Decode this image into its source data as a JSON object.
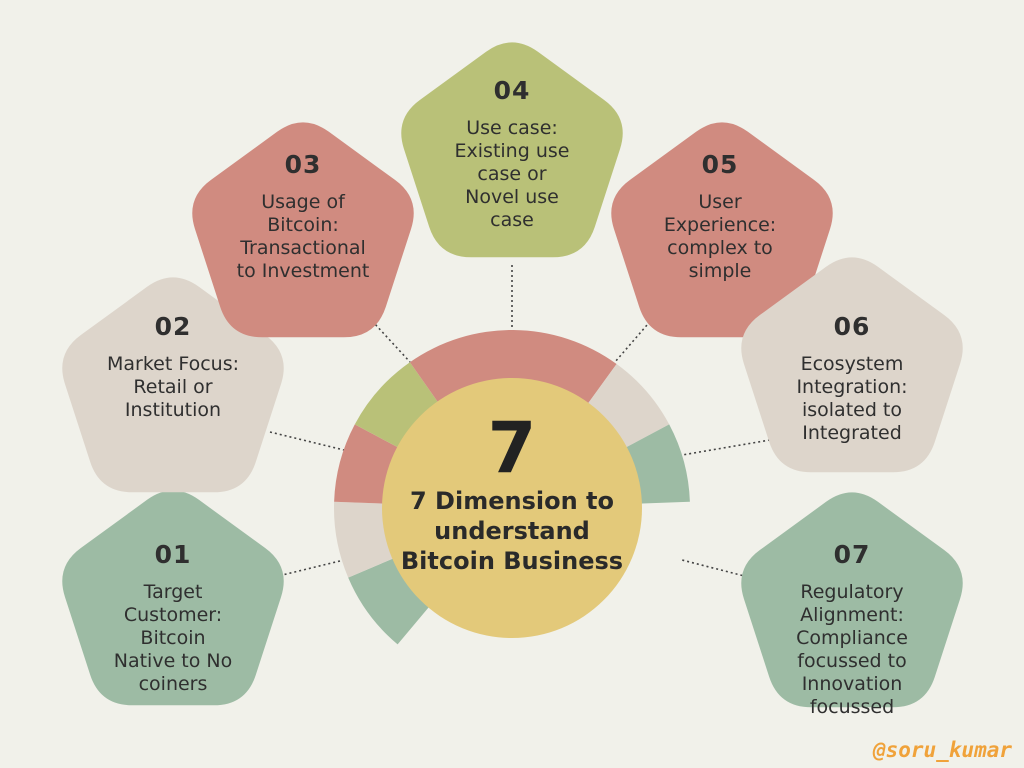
{
  "center": {
    "number": "7",
    "title": "7 Dimension to\nunderstand\nBitcoin Business",
    "fill": "#e3c97a"
  },
  "nodes": [
    {
      "id": "01",
      "label": "Target\nCustomer:\nBitcoin\nNative to No\ncoiners",
      "fill": "#9dbba4"
    },
    {
      "id": "02",
      "label": "Market Focus:\nRetail or\nInstitution",
      "fill": "#ddd5cb"
    },
    {
      "id": "03",
      "label": "Usage of\nBitcoin:\nTransactional\nto Investment",
      "fill": "#d08b80"
    },
    {
      "id": "04",
      "label": "Use case:\nExisting use\ncase or\nNovel use\ncase",
      "fill": "#b9c178"
    },
    {
      "id": "05",
      "label": "User\nExperience:\ncomplex to\nsimple",
      "fill": "#d08b80"
    },
    {
      "id": "06",
      "label": "Ecosystem\nIntegration:\nisolated to\nIntegrated",
      "fill": "#ddd5cb"
    },
    {
      "id": "07",
      "label": "Regulatory\nAlignment:\nCompliance\nfocussed to\nInnovation\nfocussed",
      "fill": "#9dbba4"
    }
  ],
  "handle": "@soru_kumar"
}
